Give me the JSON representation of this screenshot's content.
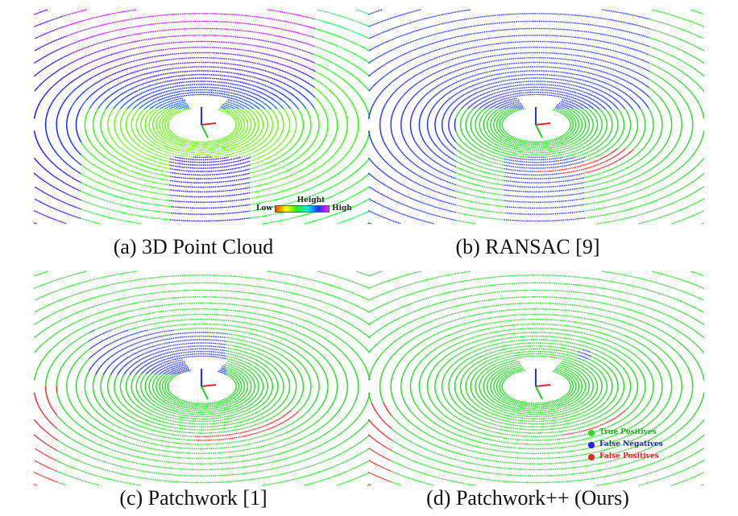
{
  "figure": {
    "panels": [
      {
        "id": "a",
        "caption": "(a) 3D Point Cloud",
        "mode": "height"
      },
      {
        "id": "b",
        "caption": "(b) RANSAC [9]",
        "mode": "ransac"
      },
      {
        "id": "c",
        "caption": "(c) Patchwork [1]",
        "mode": "patchwork"
      },
      {
        "id": "d",
        "caption": "(d) Patchwork++ (Ours)",
        "mode": "patchworkpp"
      }
    ],
    "colorbar": {
      "title": "Height",
      "low_label": "Low",
      "high_label": "High",
      "colors": [
        "#ff4400",
        "#ffff00",
        "#22ee22",
        "#00eeee",
        "#2233ff",
        "#ff22ff"
      ]
    },
    "legend": {
      "items": [
        {
          "label": "True Positives",
          "color": "#22dd22"
        },
        {
          "label": "False Negatives",
          "color": "#2222ee"
        },
        {
          "label": "False Positives",
          "color": "#ee2222"
        }
      ]
    }
  }
}
